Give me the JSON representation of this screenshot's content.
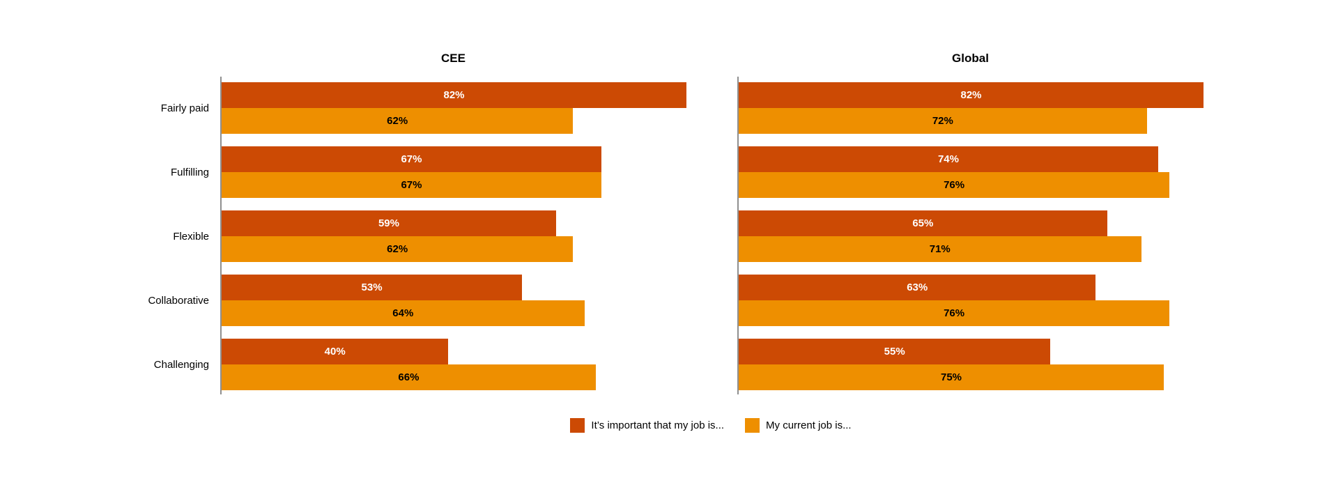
{
  "page": {
    "background": "#ffffff"
  },
  "colors": {
    "series_important": "#cc4a04",
    "series_current": "#ee8f00",
    "axis_line": "#8f8f8f",
    "label_on_dark": "#ffffff",
    "label_on_light": "#000000"
  },
  "chart_data": [
    {
      "type": "bar",
      "orientation": "horizontal",
      "title": "CEE",
      "categories": [
        "Fairly paid",
        "Fulfilling",
        "Flexible",
        "Collaborative",
        "Challenging"
      ],
      "series": [
        {
          "key": "important",
          "name": "It’s important that my job is...",
          "color": "#cc4a04",
          "label_color": "#ffffff",
          "values": [
            82,
            67,
            59,
            53,
            40
          ]
        },
        {
          "key": "current",
          "name": "My current job is...",
          "color": "#ee8f00",
          "label_color": "#000000",
          "values": [
            62,
            67,
            62,
            64,
            66
          ]
        }
      ],
      "value_suffix": "%",
      "xlim": [
        0,
        82
      ],
      "grid": false,
      "show_category_labels": true
    },
    {
      "type": "bar",
      "orientation": "horizontal",
      "title": "Global",
      "categories": [
        "Fairly paid",
        "Fulfilling",
        "Flexible",
        "Collaborative",
        "Challenging"
      ],
      "series": [
        {
          "key": "important",
          "name": "It’s important that my job is...",
          "color": "#cc4a04",
          "label_color": "#ffffff",
          "values": [
            82,
            74,
            65,
            63,
            55
          ]
        },
        {
          "key": "current",
          "name": "My current job is...",
          "color": "#ee8f00",
          "label_color": "#000000",
          "values": [
            72,
            76,
            71,
            76,
            75
          ]
        }
      ],
      "value_suffix": "%",
      "xlim": [
        0,
        82
      ],
      "grid": false,
      "show_category_labels": false
    }
  ],
  "legend": {
    "position": "bottom-center",
    "items": [
      {
        "key": "important",
        "label": "It’s important that my job is...",
        "color": "#cc4a04"
      },
      {
        "key": "current",
        "label": "My current job is...",
        "color": "#ee8f00"
      }
    ]
  }
}
